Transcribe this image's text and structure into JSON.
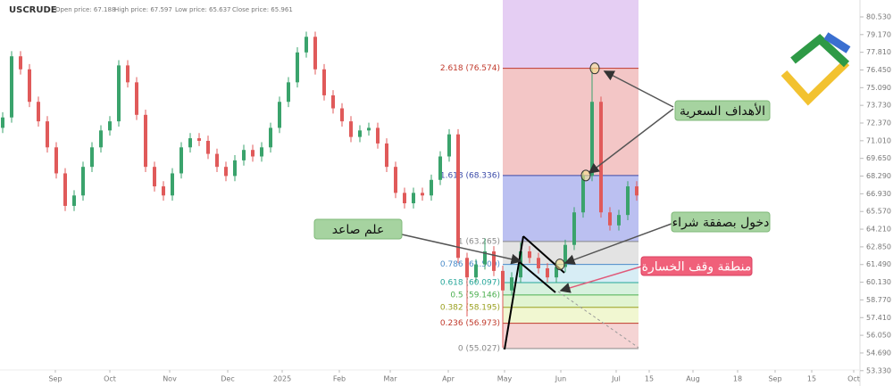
{
  "chart_data": {
    "type": "candlestick",
    "symbol": "USCRUDE",
    "header_stats": [
      "Open price: 67.188",
      "High price: 67.597",
      "Low price: 65.637",
      "Close price: 65.961"
    ],
    "up_color": "#3aa36c",
    "down_color": "#e05a5a",
    "candles": [
      [
        72.0,
        73.2,
        71.6,
        72.8
      ],
      [
        72.8,
        77.9,
        72.4,
        77.5
      ],
      [
        77.5,
        77.9,
        76.1,
        76.5
      ],
      [
        76.5,
        76.9,
        73.6,
        74.0
      ],
      [
        74.0,
        74.4,
        72.1,
        72.5
      ],
      [
        72.5,
        72.9,
        70.1,
        70.5
      ],
      [
        70.5,
        70.9,
        68.1,
        68.5
      ],
      [
        68.5,
        68.9,
        65.6,
        66.0
      ],
      [
        66.0,
        67.2,
        65.6,
        66.8
      ],
      [
        66.8,
        69.4,
        66.4,
        69.0
      ],
      [
        69.0,
        70.9,
        68.6,
        70.5
      ],
      [
        70.5,
        72.2,
        70.1,
        71.8
      ],
      [
        71.8,
        72.9,
        71.4,
        72.5
      ],
      [
        72.5,
        77.2,
        72.1,
        76.8
      ],
      [
        76.8,
        77.2,
        75.1,
        75.5
      ],
      [
        75.5,
        75.9,
        72.6,
        73.0
      ],
      [
        73.0,
        73.4,
        68.6,
        69.0
      ],
      [
        69.0,
        69.4,
        67.1,
        67.5
      ],
      [
        67.5,
        67.9,
        66.4,
        66.8
      ],
      [
        66.8,
        68.9,
        66.4,
        68.5
      ],
      [
        68.5,
        70.9,
        68.1,
        70.5
      ],
      [
        70.5,
        71.6,
        70.1,
        71.2
      ],
      [
        71.2,
        71.6,
        70.6,
        71.0
      ],
      [
        71.0,
        71.4,
        69.6,
        70.0
      ],
      [
        70.0,
        70.4,
        68.6,
        69.0
      ],
      [
        69.0,
        69.4,
        67.9,
        68.3
      ],
      [
        68.3,
        69.9,
        67.9,
        69.5
      ],
      [
        69.5,
        70.7,
        69.1,
        70.3
      ],
      [
        70.3,
        70.7,
        69.4,
        69.8
      ],
      [
        69.8,
        70.9,
        69.4,
        70.5
      ],
      [
        70.5,
        72.4,
        70.1,
        72.0
      ],
      [
        72.0,
        74.4,
        71.6,
        74.0
      ],
      [
        74.0,
        75.9,
        73.6,
        75.5
      ],
      [
        75.5,
        78.2,
        75.1,
        77.8
      ],
      [
        77.8,
        79.4,
        77.4,
        79.0
      ],
      [
        79.0,
        79.4,
        76.1,
        76.5
      ],
      [
        76.5,
        76.9,
        74.1,
        74.5
      ],
      [
        74.5,
        74.9,
        73.1,
        73.5
      ],
      [
        73.5,
        73.9,
        72.1,
        72.5
      ],
      [
        72.5,
        72.9,
        70.9,
        71.3
      ],
      [
        71.3,
        72.2,
        70.9,
        71.8
      ],
      [
        71.8,
        72.4,
        71.4,
        72.0
      ],
      [
        72.0,
        72.4,
        70.4,
        70.8
      ],
      [
        70.8,
        71.2,
        68.6,
        69.0
      ],
      [
        69.0,
        69.4,
        66.6,
        67.0
      ],
      [
        67.0,
        67.4,
        65.8,
        66.2
      ],
      [
        66.2,
        67.4,
        65.8,
        67.0
      ],
      [
        67.0,
        67.4,
        66.4,
        66.8
      ],
      [
        66.8,
        68.4,
        66.4,
        68.0
      ],
      [
        68.0,
        70.2,
        67.6,
        69.8
      ],
      [
        69.8,
        71.9,
        69.4,
        71.5
      ],
      [
        71.5,
        71.9,
        61.6,
        62.0
      ],
      [
        62.0,
        62.4,
        57.5,
        60.5
      ],
      [
        60.5,
        61.9,
        60.1,
        61.5
      ],
      [
        61.5,
        63.5,
        61.1,
        62.5
      ],
      [
        62.5,
        62.9,
        60.6,
        61.0
      ],
      [
        61.0,
        61.4,
        55.1,
        59.5
      ],
      [
        59.5,
        60.9,
        59.1,
        60.5
      ],
      [
        60.5,
        63.2,
        60.1,
        62.5
      ],
      [
        62.5,
        62.9,
        61.6,
        62.0
      ],
      [
        62.0,
        62.4,
        60.8,
        61.2
      ],
      [
        61.2,
        61.6,
        60.1,
        60.5
      ],
      [
        60.5,
        61.7,
        60.1,
        61.3
      ],
      [
        61.3,
        63.4,
        60.9,
        63.0
      ],
      [
        63.0,
        65.9,
        62.6,
        65.5
      ],
      [
        65.5,
        68.7,
        65.1,
        68.3
      ],
      [
        68.3,
        76.6,
        67.9,
        74.0
      ],
      [
        74.0,
        74.4,
        65.1,
        65.5
      ],
      [
        65.5,
        65.9,
        64.1,
        64.5
      ],
      [
        64.5,
        65.7,
        64.1,
        65.3
      ],
      [
        65.3,
        67.9,
        64.9,
        67.5
      ],
      [
        67.5,
        67.9,
        66.4,
        66.8
      ]
    ],
    "xlim": [
      -0.3,
      96.0
    ],
    "xticks": [
      {
        "value": 5.9,
        "label": "Sep"
      },
      {
        "value": 12,
        "label": "Oct"
      },
      {
        "value": 18.7,
        "label": "Nov"
      },
      {
        "value": 25.2,
        "label": "Dec"
      },
      {
        "value": 31.3,
        "label": "2025"
      },
      {
        "value": 37.7,
        "label": "Feb"
      },
      {
        "value": 43.4,
        "label": "Mar"
      },
      {
        "value": 49.9,
        "label": "Apr"
      },
      {
        "value": 56.2,
        "label": "May"
      },
      {
        "value": 62.5,
        "label": "Jun"
      },
      {
        "value": 68.7,
        "label": "Jul"
      },
      {
        "value": 72.4,
        "label": "15"
      },
      {
        "value": 77.3,
        "label": "Aug"
      },
      {
        "value": 82.3,
        "label": "18"
      },
      {
        "value": 86.5,
        "label": "Sep"
      },
      {
        "value": 90.6,
        "label": "15"
      },
      {
        "value": 95.3,
        "label": "Oct"
      }
    ],
    "ylim": [
      52.15,
      81.83
    ],
    "yticks": [
      {
        "value": 80.53,
        "label": "80.530"
      },
      {
        "value": 79.17,
        "label": "79.170"
      },
      {
        "value": 77.81,
        "label": "77.810"
      },
      {
        "value": 76.45,
        "label": "76.450"
      },
      {
        "value": 75.09,
        "label": "75.090"
      },
      {
        "value": 73.73,
        "label": "73.730"
      },
      {
        "value": 72.37,
        "label": "72.370"
      },
      {
        "value": 71.01,
        "label": "71.010"
      },
      {
        "value": 69.65,
        "label": "69.650"
      },
      {
        "value": 68.29,
        "label": "68.290"
      },
      {
        "value": 66.93,
        "label": "66.930"
      },
      {
        "value": 65.57,
        "label": "65.570"
      },
      {
        "value": 64.21,
        "label": "64.210"
      },
      {
        "value": 62.85,
        "label": "62.850"
      },
      {
        "value": 61.49,
        "label": "61.490"
      },
      {
        "value": 60.13,
        "label": "60.130"
      },
      {
        "value": 58.77,
        "label": "58.770"
      },
      {
        "value": 57.41,
        "label": "57.410"
      },
      {
        "value": 56.05,
        "label": "56.050"
      },
      {
        "value": 54.69,
        "label": "54.690"
      },
      {
        "value": 53.33,
        "label": "53.330"
      }
    ],
    "fib_start": 56.0,
    "fib_end": 71.2,
    "fib_levels": [
      {
        "label": "0 (55.027)",
        "price": 55.027,
        "color": "#888888",
        "zone": "#f3c9c9"
      },
      {
        "label": "0.236 (56.973)",
        "price": 56.973,
        "color": "#c0392b",
        "zone": "#eef5c6"
      },
      {
        "label": "0.382 (58.195)",
        "price": 58.195,
        "color": "#9aa020",
        "zone": "#d9f1c6"
      },
      {
        "label": "0.5 (59.146)",
        "price": 59.146,
        "color": "#4caf50",
        "zone": "#cdeed6"
      },
      {
        "label": "0.618 (60.097)",
        "price": 60.097,
        "color": "#26a69a",
        "zone": "#cde8f3"
      },
      {
        "label": "0.786 (61.500)",
        "price": 61.5,
        "color": "#4a8bc9",
        "zone": "#dcdcdc"
      },
      {
        "label": "1 (63.265)",
        "price": 63.265,
        "color": "#888888",
        "zone": "#aab0ee"
      },
      {
        "label": "1.618 (68.336)",
        "price": 68.336,
        "color": "#3b4aa8",
        "zone": "#f0b8b8"
      },
      {
        "label": "2.618 (76.574)",
        "price": 76.574,
        "color": "#c0392b",
        "zone": "#dfc2f0"
      }
    ],
    "annotations": [
      {
        "text": "علم صاعد",
        "style": "green"
      },
      {
        "text": "دخول بصفقة شراء",
        "style": "green"
      },
      {
        "text": "منطقة وقف الخسارة",
        "style": "red"
      },
      {
        "text": "الأهداف السعرية",
        "style": "green"
      }
    ]
  }
}
